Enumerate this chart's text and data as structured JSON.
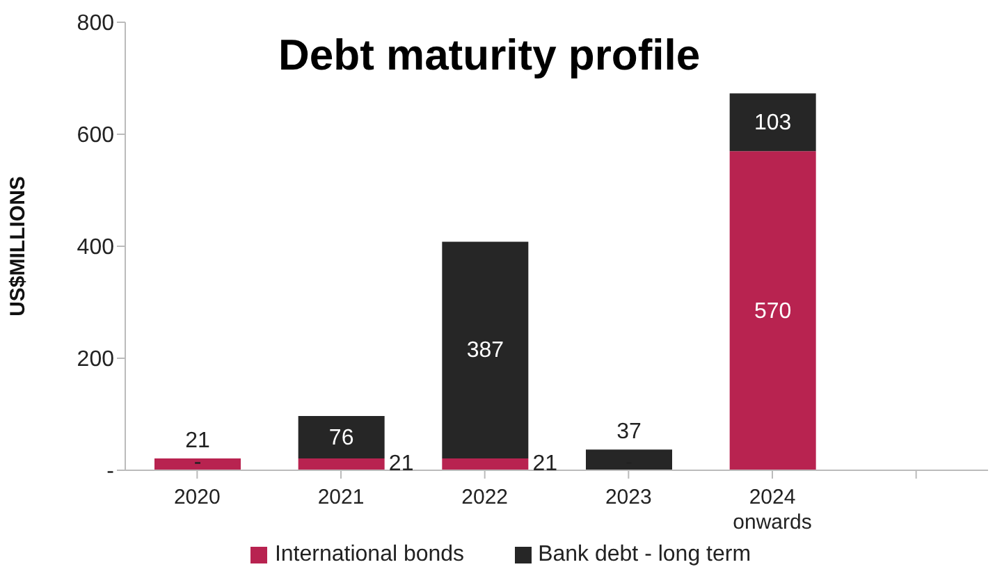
{
  "chart_data": {
    "type": "bar",
    "title": "Debt maturity profile",
    "ylabel": "US$MILLIONS",
    "categories": [
      "2020",
      "2021",
      "2022",
      "2023",
      "2024 onwards",
      null
    ],
    "stacked": true,
    "series": [
      {
        "name": "International bonds",
        "color": "#b82350",
        "values": [
          21,
          21,
          21,
          0,
          570,
          null
        ],
        "value_labels": [
          "21",
          "21",
          "21",
          "-",
          "570",
          null
        ]
      },
      {
        "name": "Bank debt - long term",
        "color": "#262626",
        "values": [
          0,
          76,
          387,
          37,
          103,
          null
        ],
        "value_labels": [
          "-",
          "76",
          "387",
          "37",
          "103",
          null
        ]
      }
    ],
    "ylim": [
      0,
      800
    ],
    "yticks": [
      {
        "value": 0,
        "label": "-"
      },
      200,
      400,
      600,
      800
    ],
    "legend": "bottom"
  }
}
